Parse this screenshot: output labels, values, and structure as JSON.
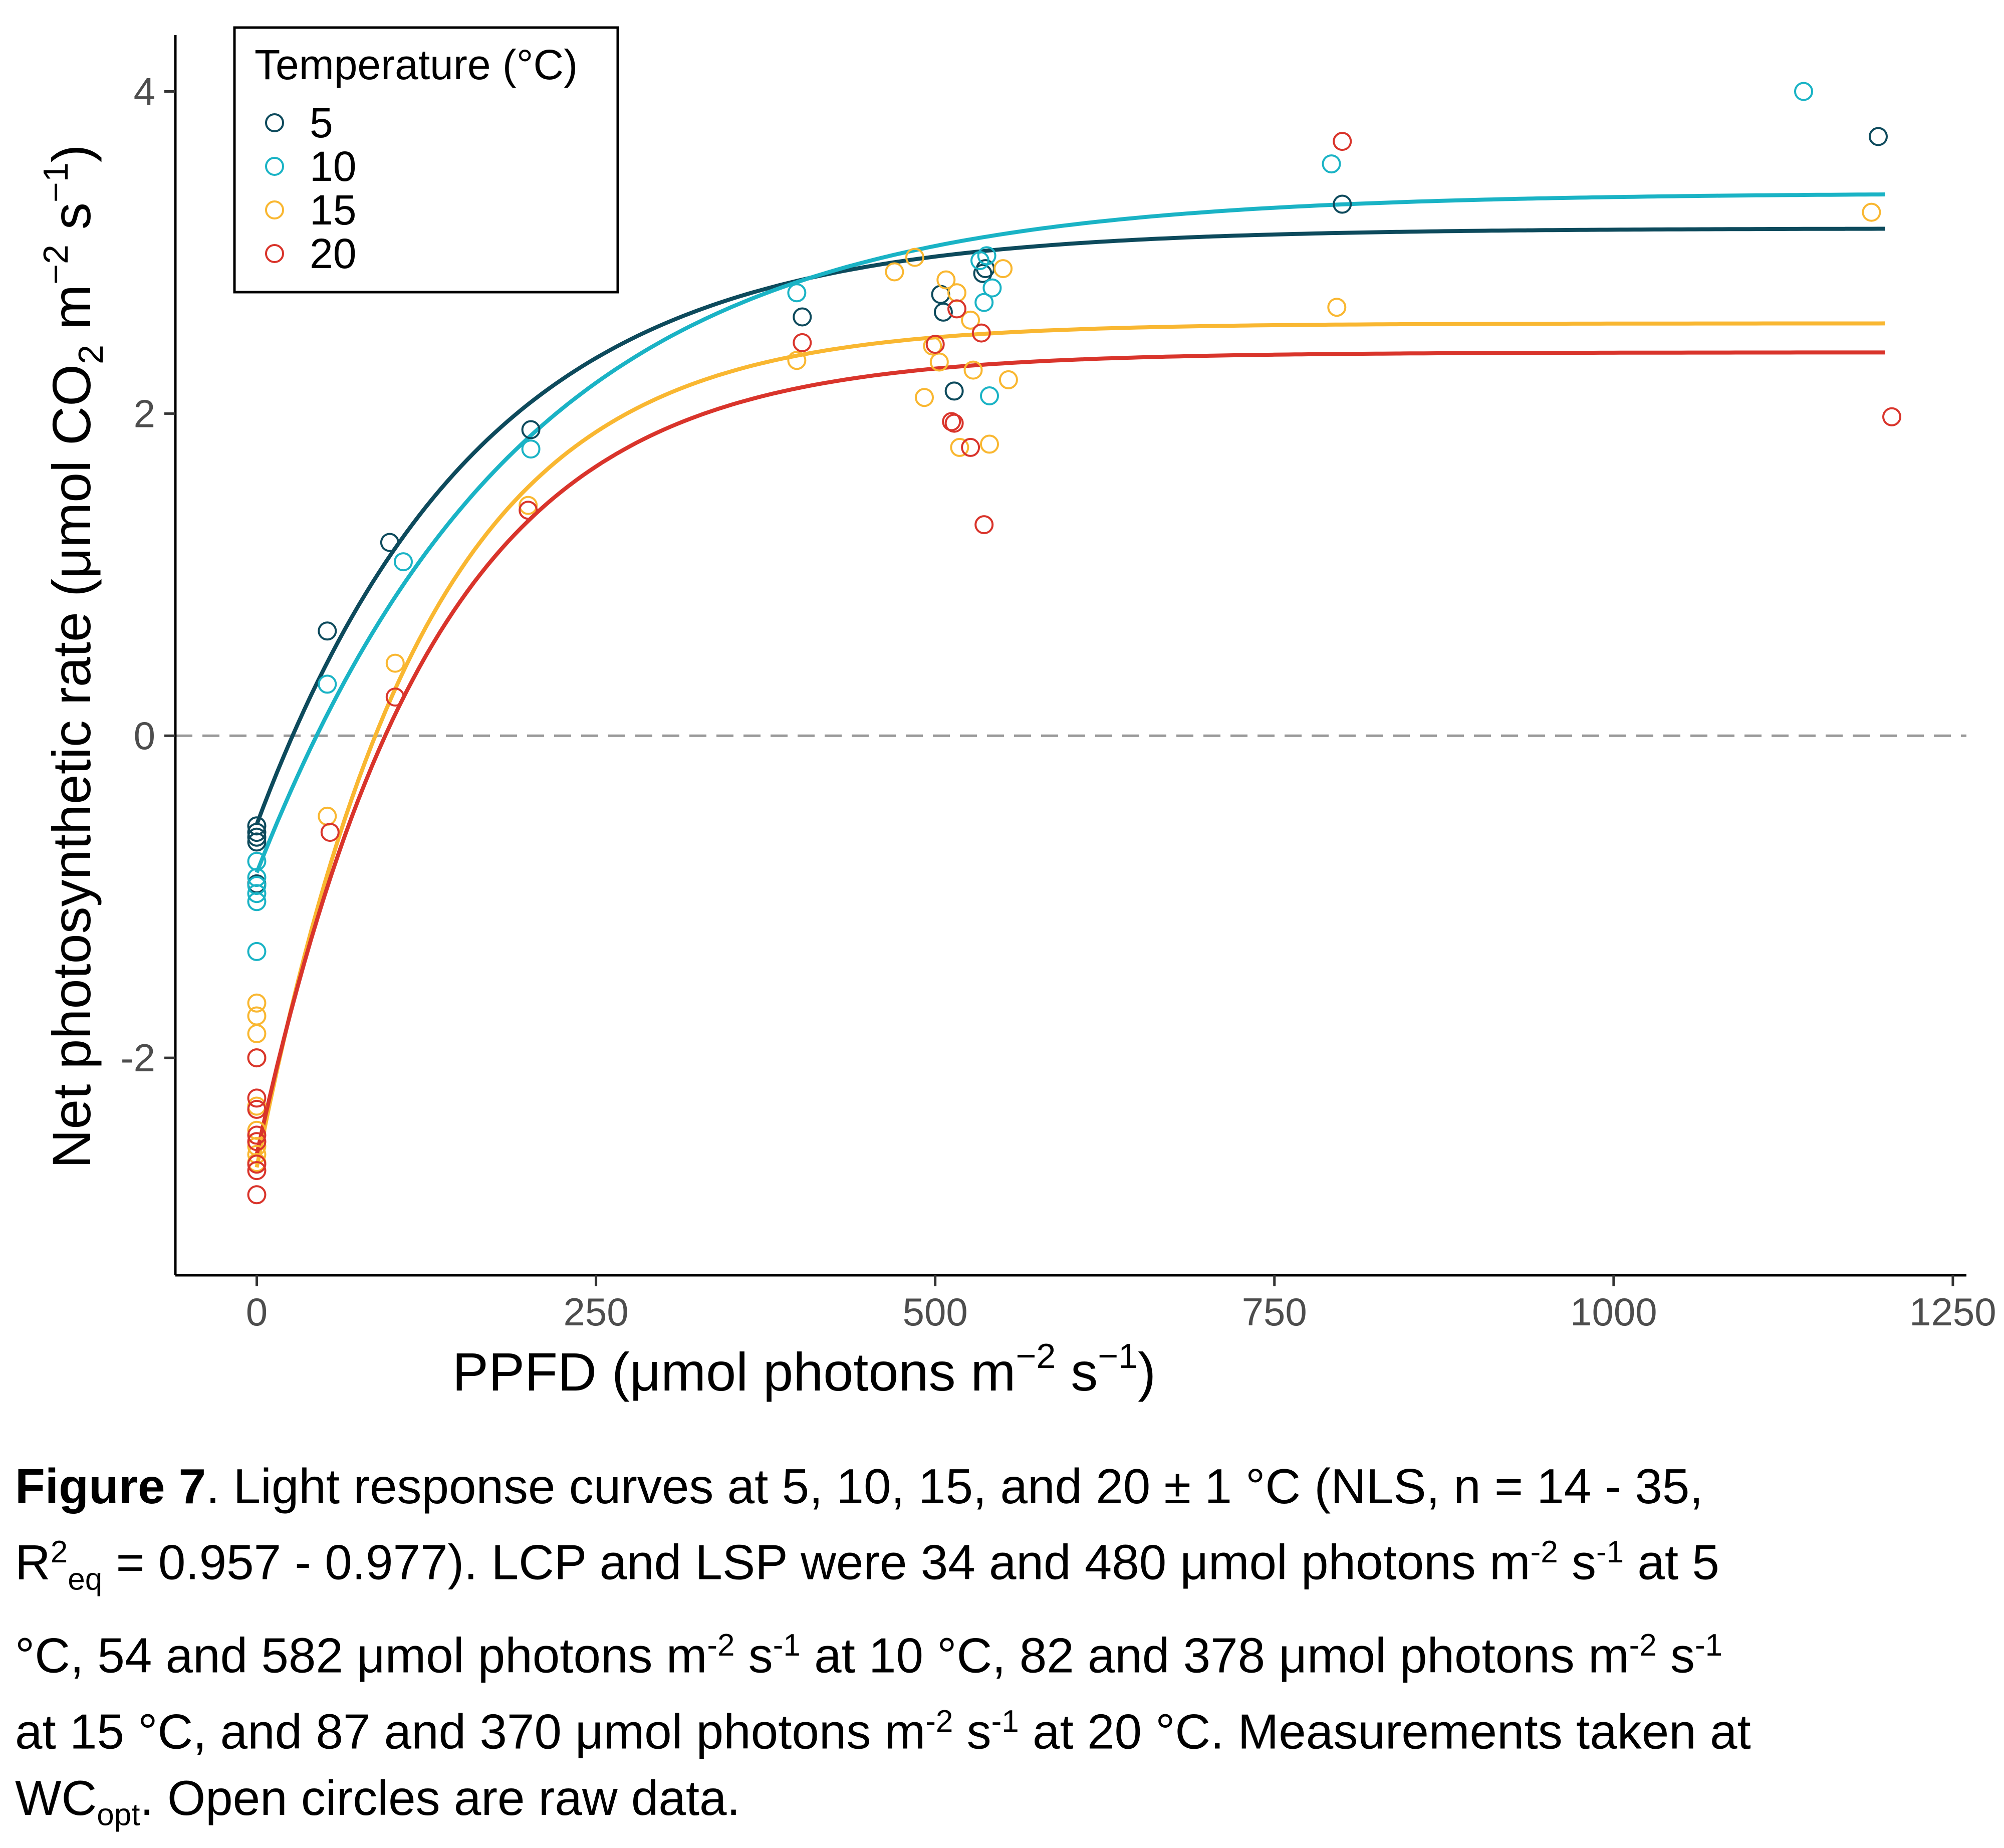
{
  "chart_data": {
    "type": "scatter",
    "xlabel": "PPFD (μmol photons m−2 s−1)",
    "ylabel": "Net photosynthetic rate (μmol CO2 m−2 s−1)",
    "xlim": [
      -60,
      1260
    ],
    "ylim": [
      -3.35,
      4.35
    ],
    "xticks": [
      0,
      250,
      500,
      750,
      1000,
      1250
    ],
    "yticks": [
      -2,
      0,
      2,
      4
    ],
    "ytick_labels": [
      "-2",
      "0",
      "2",
      "4"
    ],
    "reference_line": {
      "y": 0,
      "style": "dashed",
      "color": "#999999"
    },
    "legend": {
      "title": "Temperature (°C)",
      "position": "top-left",
      "marker": "open circle"
    },
    "series": [
      {
        "name": "5",
        "color": "#0d4a5c",
        "fit": {
          "pmax": 3.7,
          "rd": -0.55,
          "k": 0.0061,
          "x_end": 1200
        },
        "points": [
          [
            0,
            -0.56
          ],
          [
            0,
            -0.6
          ],
          [
            0,
            -0.63
          ],
          [
            0,
            -0.66
          ],
          [
            0,
            -0.92
          ],
          [
            52,
            0.65
          ],
          [
            98,
            1.2
          ],
          [
            202,
            1.9
          ],
          [
            402,
            2.6
          ],
          [
            504,
            2.74
          ],
          [
            506,
            2.63
          ],
          [
            514,
            2.14
          ],
          [
            535,
            2.87
          ],
          [
            537,
            2.9
          ],
          [
            800,
            3.3
          ],
          [
            1195,
            3.72
          ]
        ]
      },
      {
        "name": "10",
        "color": "#1ab3c5",
        "fit": {
          "pmax": 4.22,
          "rd": -0.85,
          "k": 0.0051,
          "x_end": 1200
        },
        "points": [
          [
            0,
            -0.78
          ],
          [
            0,
            -0.88
          ],
          [
            0,
            -0.93
          ],
          [
            0,
            -0.98
          ],
          [
            0,
            -1.03
          ],
          [
            0,
            -1.34
          ],
          [
            52,
            0.32
          ],
          [
            108,
            1.08
          ],
          [
            202,
            1.78
          ],
          [
            398,
            2.75
          ],
          [
            533,
            2.95
          ],
          [
            536,
            2.69
          ],
          [
            538,
            2.98
          ],
          [
            540,
            2.11
          ],
          [
            542,
            2.78
          ],
          [
            792,
            3.55
          ],
          [
            1140,
            4.0
          ]
        ]
      },
      {
        "name": "15",
        "color": "#f9b731",
        "fit": {
          "pmax": 5.24,
          "rd": -2.68,
          "k": 0.0082,
          "x_end": 1200
        },
        "points": [
          [
            0,
            -1.66
          ],
          [
            0,
            -1.74
          ],
          [
            0,
            -1.85
          ],
          [
            0,
            -2.0
          ],
          [
            0,
            -2.3
          ],
          [
            0,
            -2.45
          ],
          [
            0,
            -2.55
          ],
          [
            0,
            -2.6
          ],
          [
            0,
            -2.65
          ],
          [
            52,
            -0.5
          ],
          [
            102,
            0.45
          ],
          [
            200,
            1.43
          ],
          [
            398,
            2.33
          ],
          [
            470,
            2.88
          ],
          [
            485,
            2.97
          ],
          [
            492,
            2.1
          ],
          [
            498,
            2.42
          ],
          [
            503,
            2.32
          ],
          [
            508,
            2.83
          ],
          [
            516,
            2.75
          ],
          [
            518,
            1.79
          ],
          [
            526,
            2.58
          ],
          [
            528,
            2.27
          ],
          [
            540,
            1.81
          ],
          [
            550,
            2.9
          ],
          [
            554,
            2.21
          ],
          [
            796,
            2.66
          ],
          [
            1190,
            3.25
          ]
        ]
      },
      {
        "name": "20",
        "color": "#d9342b",
        "fit": {
          "pmax": 4.98,
          "rd": -2.6,
          "k": 0.0078,
          "x_end": 1200
        },
        "points": [
          [
            0,
            -2.0
          ],
          [
            0,
            -2.25
          ],
          [
            0,
            -2.32
          ],
          [
            0,
            -2.48
          ],
          [
            0,
            -2.52
          ],
          [
            0,
            -2.66
          ],
          [
            0,
            -2.7
          ],
          [
            0,
            -2.85
          ],
          [
            54,
            -0.6
          ],
          [
            102,
            0.24
          ],
          [
            200,
            1.4
          ],
          [
            402,
            2.44
          ],
          [
            500,
            2.43
          ],
          [
            512,
            1.95
          ],
          [
            514,
            1.94
          ],
          [
            516,
            2.65
          ],
          [
            526,
            1.79
          ],
          [
            534,
            2.5
          ],
          [
            536,
            1.31
          ],
          [
            800,
            3.69
          ],
          [
            1205,
            1.98
          ]
        ]
      }
    ]
  },
  "caption": {
    "figure_label": "Figure 7",
    "line1": ". Light response curves at 5, 10, 15, and 20 ± 1 °C (NLS, n = 14 - 35,",
    "r": "R",
    "r_sup": "2",
    "r_sub": "eq",
    "line2": " = 0.957 - 0.977). LCP and LSP were 34 and 480 μmol photons m",
    "neg2": "-2",
    "s": " s",
    "neg1": "-1",
    "t5": " at 5",
    "line3": "°C, 54 and 582 μmol photons m",
    "t10": " at 10 °C, 82 and 378 μmol photons m",
    "line4": "at 15 °C, and 87 and 370 μmol photons m",
    "t20": " at 20 °C. Measurements taken at",
    "wc": "WC",
    "wc_sub": "opt",
    "end": ". Open circles are raw data."
  }
}
